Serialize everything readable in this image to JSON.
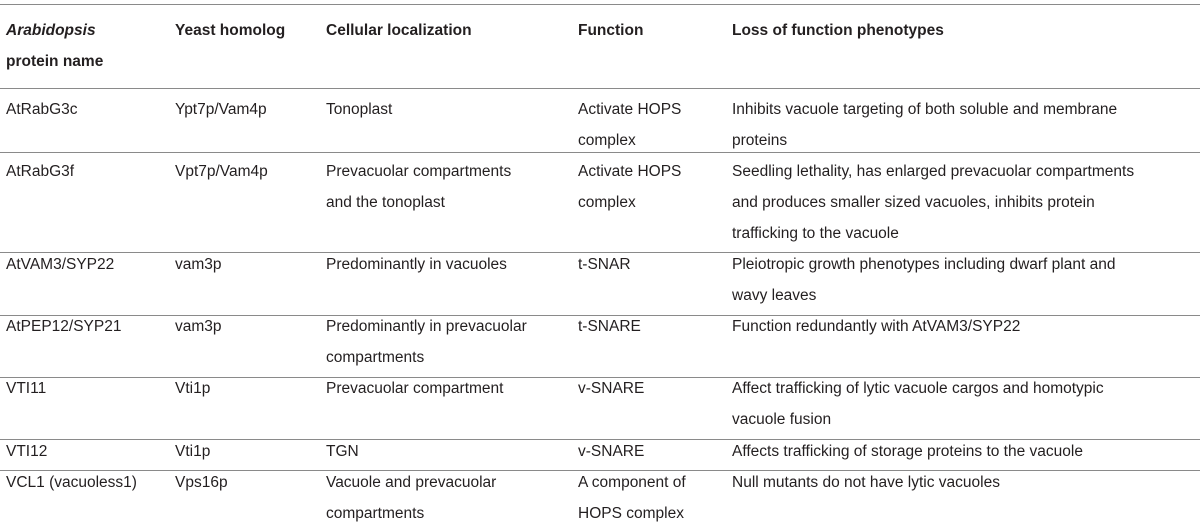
{
  "headers": {
    "protein_name_line1": "Arabidopsis",
    "protein_name_line2": "protein name",
    "yeast_homolog": "Yeast homolog",
    "cellular_localization": "Cellular localization",
    "function": "Function",
    "loss_of_function": "Loss of function phenotypes"
  },
  "rows": [
    {
      "protein": "AtRabG3c",
      "yeast": "Ypt7p/Vam4p",
      "localization": [
        "Tonoplast"
      ],
      "function": [
        "Activate HOPS",
        "complex"
      ],
      "phenotype": [
        "Inhibits vacuole targeting of both soluble and membrane",
        "proteins"
      ]
    },
    {
      "protein": "AtRabG3f",
      "yeast": "Vpt7p/Vam4p",
      "localization": [
        "Prevacuolar compartments",
        "and the tonoplast"
      ],
      "function": [
        "Activate HOPS",
        "complex"
      ],
      "phenotype": [
        "Seedling lethality, has enlarged prevacuolar compartments",
        "and produces smaller sized vacuoles, inhibits protein",
        "trafficking to the vacuole"
      ]
    },
    {
      "protein": "AtVAM3/SYP22",
      "yeast": "vam3p",
      "localization": [
        "Predominantly in vacuoles"
      ],
      "function": [
        "t-SNAR"
      ],
      "phenotype": [
        "Pleiotropic growth phenotypes including dwarf plant and",
        "wavy leaves"
      ]
    },
    {
      "protein": "AtPEP12/SYP21",
      "yeast": "vam3p",
      "localization": [
        "Predominantly in prevacuolar",
        "compartments"
      ],
      "function": [
        "t-SNARE"
      ],
      "phenotype": [
        "Function redundantly with AtVAM3/SYP22"
      ]
    },
    {
      "protein": "VTI11",
      "yeast": "Vti1p",
      "localization": [
        "Prevacuolar compartment"
      ],
      "function": [
        "v-SNARE"
      ],
      "phenotype": [
        "Affect trafficking of lytic vacuole cargos and homotypic",
        "vacuole fusion"
      ]
    },
    {
      "protein": "VTI12",
      "yeast": "Vti1p",
      "localization": [
        "TGN"
      ],
      "function": [
        "v-SNARE"
      ],
      "phenotype": [
        "Affects trafficking of storage proteins to the vacuole"
      ]
    },
    {
      "protein": "VCL1 (vacuoless1)",
      "yeast": "Vps16p",
      "localization": [
        "Vacuole and prevacuolar",
        "compartments"
      ],
      "function": [
        "A component of",
        "HOPS complex"
      ],
      "phenotype": [
        "Null mutants do not have lytic vacuoles"
      ]
    }
  ]
}
